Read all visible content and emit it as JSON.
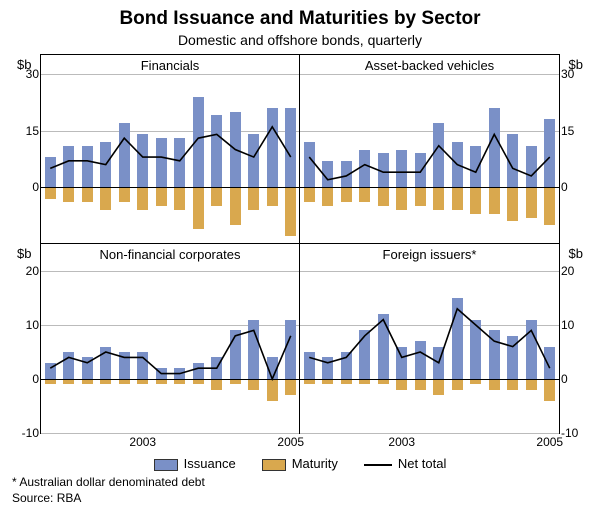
{
  "title": "Bond Issuance and Maturities by Sector",
  "subtitle": "Domestic and offshore bonds, quarterly",
  "yunit": "$b",
  "colors": {
    "issuance": "#7a90c7",
    "maturity": "#d9a84e",
    "net": "#000000",
    "grid": "#bbbbbb",
    "border": "#000000",
    "bg": "#ffffff"
  },
  "legend": {
    "issuance": "Issuance",
    "maturity": "Maturity",
    "net": "Net total"
  },
  "footnote": "*  Australian dollar denominated debt",
  "source": "Source: RBA",
  "x": {
    "categories": [
      "2002Q1",
      "2002Q2",
      "2002Q3",
      "2002Q4",
      "2003Q1",
      "2003Q2",
      "2003Q3",
      "2003Q4",
      "2004Q1",
      "2004Q2",
      "2004Q3",
      "2004Q4",
      "2005Q1",
      "2005Q2"
    ],
    "tick_labels": [
      {
        "index": 5,
        "label": "2003"
      },
      {
        "index": 13,
        "label": "2005"
      }
    ]
  },
  "rows": [
    {
      "ylim": [
        -15,
        35
      ],
      "yticks": [
        0,
        15,
        30
      ],
      "panels": [
        {
          "title": "Financials",
          "ylabel_side": "left",
          "issuance": [
            8,
            11,
            11,
            12,
            17,
            14,
            13,
            13,
            24,
            19,
            20,
            14,
            21,
            21
          ],
          "maturity": [
            -3,
            -4,
            -4,
            -6,
            -4,
            -6,
            -5,
            -6,
            -11,
            -5,
            -10,
            -6,
            -5,
            -13
          ],
          "net": [
            5,
            7,
            7,
            6,
            13,
            8,
            8,
            7,
            13,
            14,
            10,
            8,
            16,
            8
          ]
        },
        {
          "title": "Asset-backed vehicles",
          "ylabel_side": "right",
          "issuance": [
            12,
            7,
            7,
            10,
            9,
            10,
            9,
            17,
            12,
            11,
            21,
            14,
            11,
            18
          ],
          "maturity": [
            -4,
            -5,
            -4,
            -4,
            -5,
            -6,
            -5,
            -6,
            -6,
            -7,
            -7,
            -9,
            -8,
            -10
          ],
          "net": [
            8,
            2,
            3,
            6,
            4,
            4,
            4,
            11,
            6,
            4,
            14,
            5,
            3,
            8
          ]
        }
      ]
    },
    {
      "ylim": [
        -10,
        25
      ],
      "yticks": [
        -10,
        0,
        10,
        20
      ],
      "panels": [
        {
          "title": "Non-financial corporates",
          "ylabel_side": "left",
          "issuance": [
            3,
            5,
            4,
            6,
            5,
            5,
            2,
            2,
            3,
            4,
            9,
            11,
            4,
            11
          ],
          "maturity": [
            -1,
            -1,
            -1,
            -1,
            -1,
            -1,
            -1,
            -1,
            -1,
            -2,
            -1,
            -2,
            -4,
            -3
          ],
          "net": [
            2,
            4,
            3,
            5,
            4,
            4,
            1,
            1,
            2,
            2,
            8,
            9,
            0,
            8
          ]
        },
        {
          "title": "Foreign issuers*",
          "ylabel_side": "right",
          "issuance": [
            5,
            4,
            5,
            9,
            12,
            6,
            7,
            6,
            15,
            11,
            9,
            8,
            11,
            6
          ],
          "maturity": [
            -1,
            -1,
            -1,
            -1,
            -1,
            -2,
            -2,
            -3,
            -2,
            -1,
            -2,
            -2,
            -2,
            -4
          ],
          "net": [
            4,
            3,
            4,
            8,
            11,
            4,
            5,
            3,
            13,
            10,
            7,
            6,
            9,
            2
          ]
        }
      ]
    }
  ],
  "typography": {
    "title_fontsize": 19,
    "subtitle_fontsize": 14,
    "panel_title_fontsize": 13,
    "axis_fontsize": 12
  }
}
